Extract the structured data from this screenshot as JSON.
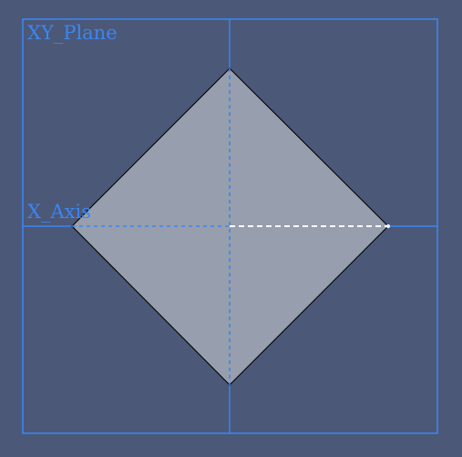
{
  "viewport": {
    "background": "#4b5878",
    "construction_color": "#3b86f0",
    "face_color": "#979ead",
    "edge_color": "#000000",
    "selected_color": "#ffffff"
  },
  "labels": {
    "plane": "XY_Plane",
    "axis": "X_Axis"
  }
}
